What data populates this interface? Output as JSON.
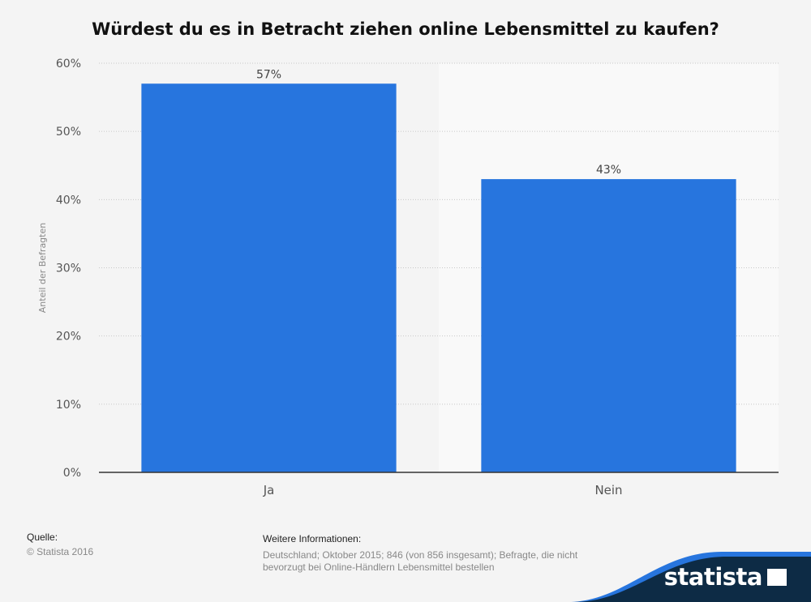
{
  "chart_data": {
    "type": "bar",
    "title": "Würdest du es in Betracht ziehen online Lebensmittel zu kaufen?",
    "xlabel": "",
    "ylabel": "Anteil der Befragten",
    "categories": [
      "Ja",
      "Nein"
    ],
    "values": [
      57,
      43
    ],
    "value_labels": [
      "57%",
      "43%"
    ],
    "ylim": [
      0,
      60
    ],
    "yticks": [
      0,
      10,
      20,
      30,
      40,
      50,
      60
    ],
    "ytick_labels": [
      "0%",
      "10%",
      "20%",
      "30%",
      "40%",
      "50%",
      "60%"
    ],
    "grid": true,
    "bar_color": "#2775de"
  },
  "footer": {
    "source_title": "Quelle:",
    "source_value": "© Statista 2016",
    "info_title": "Weitere Informationen:",
    "info_value": "Deutschland; Oktober 2015; 846 (von 856 insgesamt); Befragte, die nicht bevorzugt bei Online-Händlern Lebensmittel bestellen"
  },
  "brand": {
    "name": "statista",
    "color": "#0d2b45",
    "accent": "#2775de"
  }
}
